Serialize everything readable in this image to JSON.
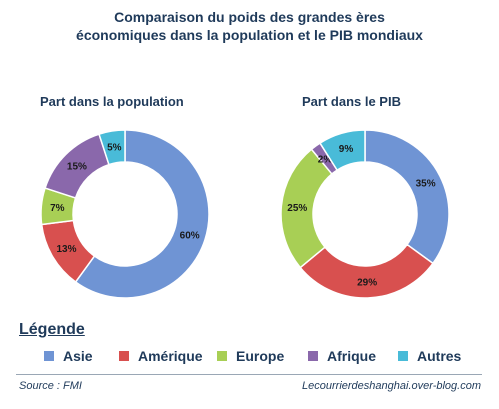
{
  "title_line1": "Comparaison du poids des grandes ères",
  "title_line2": "économiques dans la population et le PIB mondiaux",
  "legend_title": "Légende",
  "source": "Source : FMI",
  "website": "Lecourrierdeshanghai.over-blog.com",
  "chart_data": {
    "type": "pie",
    "charts": [
      {
        "subtitle": "Part dans la population",
        "slices": [
          {
            "label": "Asie",
            "value": 60,
            "color": "#6f94d4"
          },
          {
            "label": "Amérique",
            "value": 13,
            "color": "#d8504f"
          },
          {
            "label": "Europe",
            "value": 7,
            "color": "#a8cf55"
          },
          {
            "label": "Afrique",
            "value": 15,
            "color": "#8a68ab"
          },
          {
            "label": "Autres",
            "value": 5,
            "color": "#49bbd8"
          }
        ]
      },
      {
        "subtitle": "Part dans le PIB",
        "slices": [
          {
            "label": "Asie",
            "value": 35,
            "color": "#6f94d4"
          },
          {
            "label": "Amérique",
            "value": 29,
            "color": "#d8504f"
          },
          {
            "label": "Europe",
            "value": 25,
            "color": "#a8cf55"
          },
          {
            "label": "Afrique",
            "value": 2,
            "color": "#8a68ab"
          },
          {
            "label": "Autres",
            "value": 9,
            "color": "#49bbd8"
          }
        ]
      }
    ],
    "legend": [
      {
        "label": "Asie",
        "color": "#6f94d4"
      },
      {
        "label": "Amérique",
        "color": "#d8504f"
      },
      {
        "label": "Europe",
        "color": "#a8cf55"
      },
      {
        "label": "Afrique",
        "color": "#8a68ab"
      },
      {
        "label": "Autres",
        "color": "#49bbd8"
      }
    ]
  }
}
